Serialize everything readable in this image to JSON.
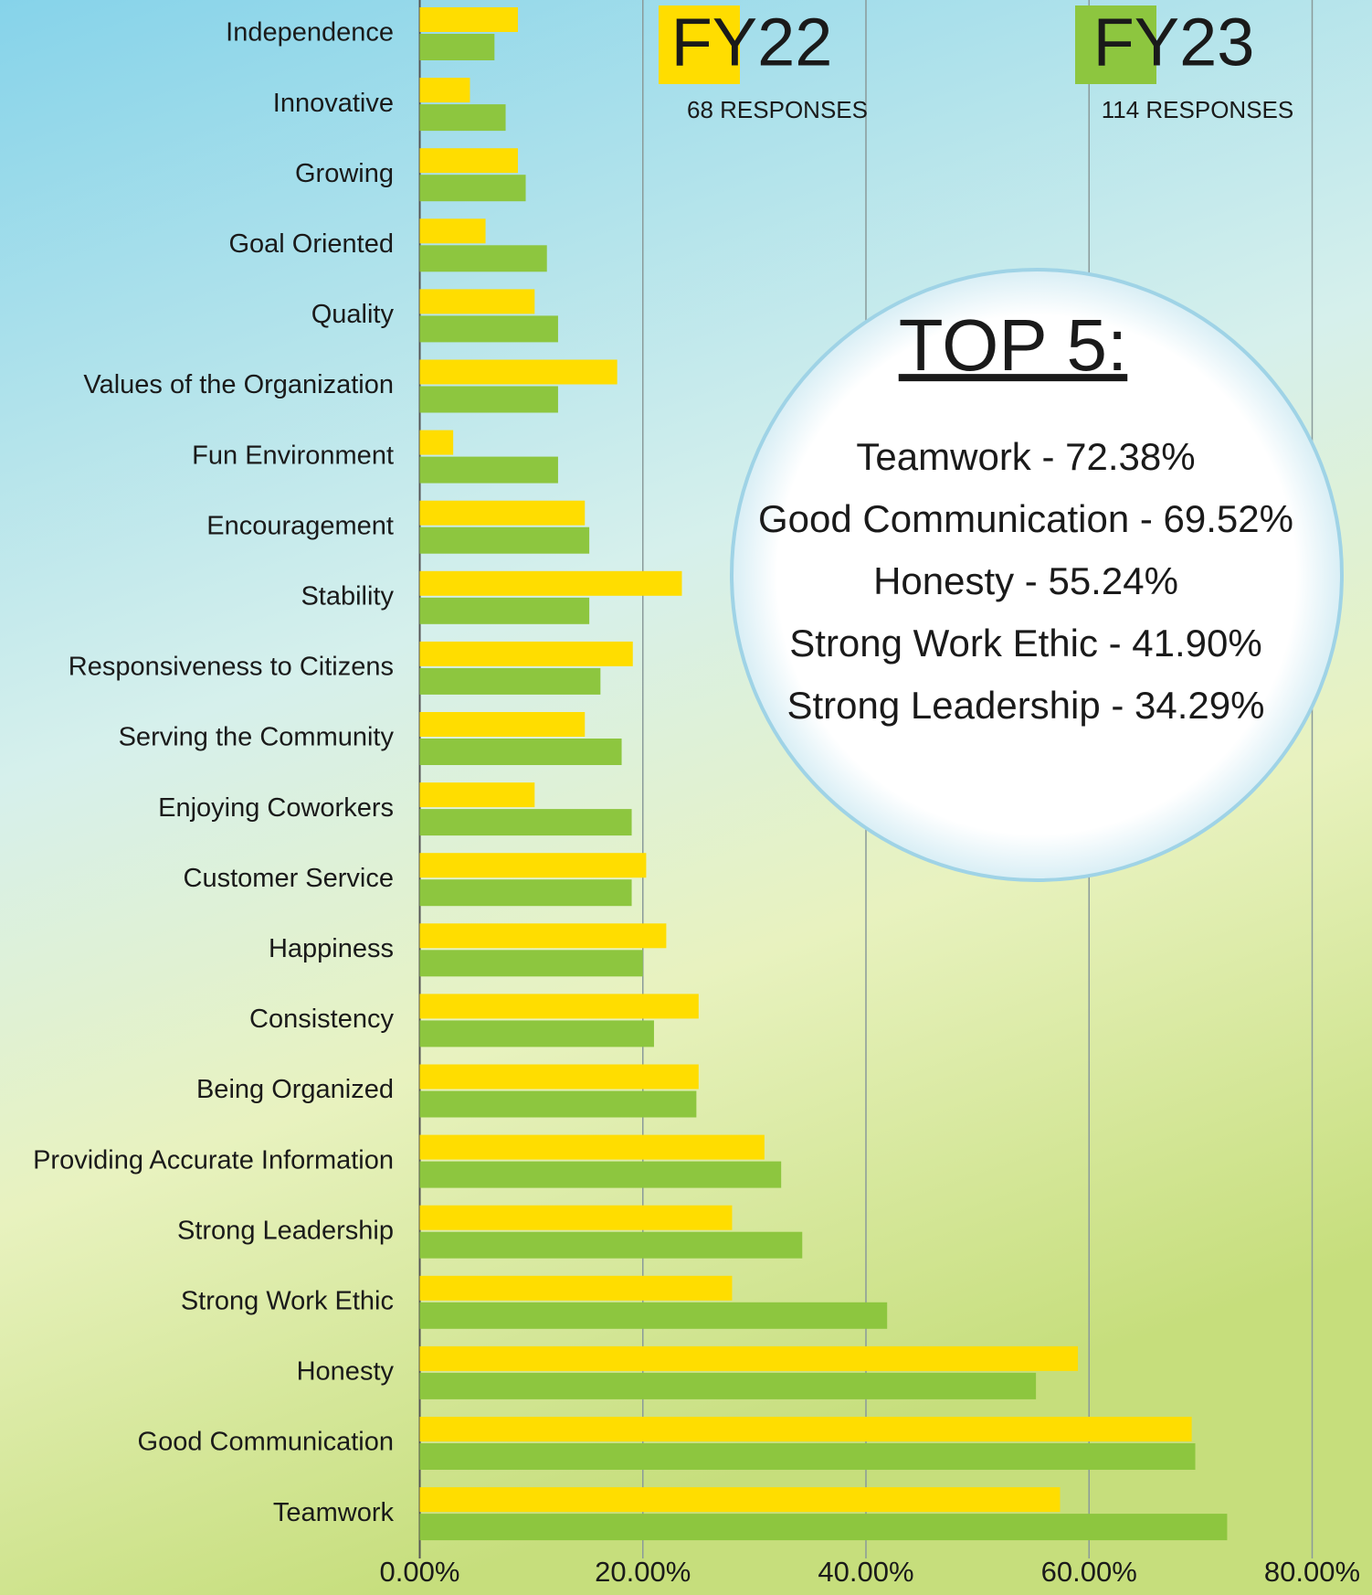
{
  "chart_data": {
    "type": "barh",
    "categories": [
      "Independence",
      "Innovative",
      "Growing",
      "Goal Oriented",
      "Quality",
      "Values of the Organization",
      "Fun Environment",
      "Encouragement",
      "Stability",
      "Responsiveness to Citizens",
      "Serving the Community",
      "Enjoying Coworkers",
      "Customer Service",
      "Happiness",
      "Consistency",
      "Being Organized",
      "Providing Accurate Information",
      "Strong Leadership",
      "Strong Work Ethic",
      "Honesty",
      "Good Communication",
      "Teamwork"
    ],
    "series": [
      {
        "name": "FY22",
        "responses_label": "68 RESPONSES",
        "color": "#ffdd00",
        "values": [
          8.8,
          4.5,
          8.8,
          5.9,
          10.3,
          17.7,
          3.0,
          14.8,
          23.5,
          19.1,
          14.8,
          10.3,
          20.3,
          22.1,
          25.0,
          25.0,
          30.9,
          28.0,
          28.0,
          59.0,
          69.2,
          57.4
        ]
      },
      {
        "name": "FY23",
        "responses_label": "114 RESPONSES",
        "color": "#8dc63f",
        "values": [
          6.7,
          7.7,
          9.5,
          11.4,
          12.4,
          12.4,
          12.4,
          15.2,
          15.2,
          16.2,
          18.1,
          19.0,
          19.0,
          20.0,
          21.0,
          24.8,
          32.4,
          34.29,
          41.9,
          55.24,
          69.52,
          72.38
        ]
      }
    ],
    "xlim": [
      0,
      80
    ],
    "xticks": [
      {
        "value": 0,
        "label": "0.00%"
      },
      {
        "value": 20,
        "label": "20.00%"
      },
      {
        "value": 40,
        "label": "40.00%"
      },
      {
        "value": 60,
        "label": "60.00%"
      },
      {
        "value": 80,
        "label": "80.00%"
      }
    ],
    "grid": true,
    "callout": {
      "title": "TOP 5:",
      "items": [
        "Teamwork - 72.38%",
        "Good Communication - 69.52%",
        "Honesty - 55.24%",
        "Strong Work Ethic - 41.90%",
        "Strong Leadership - 34.29%"
      ]
    }
  }
}
